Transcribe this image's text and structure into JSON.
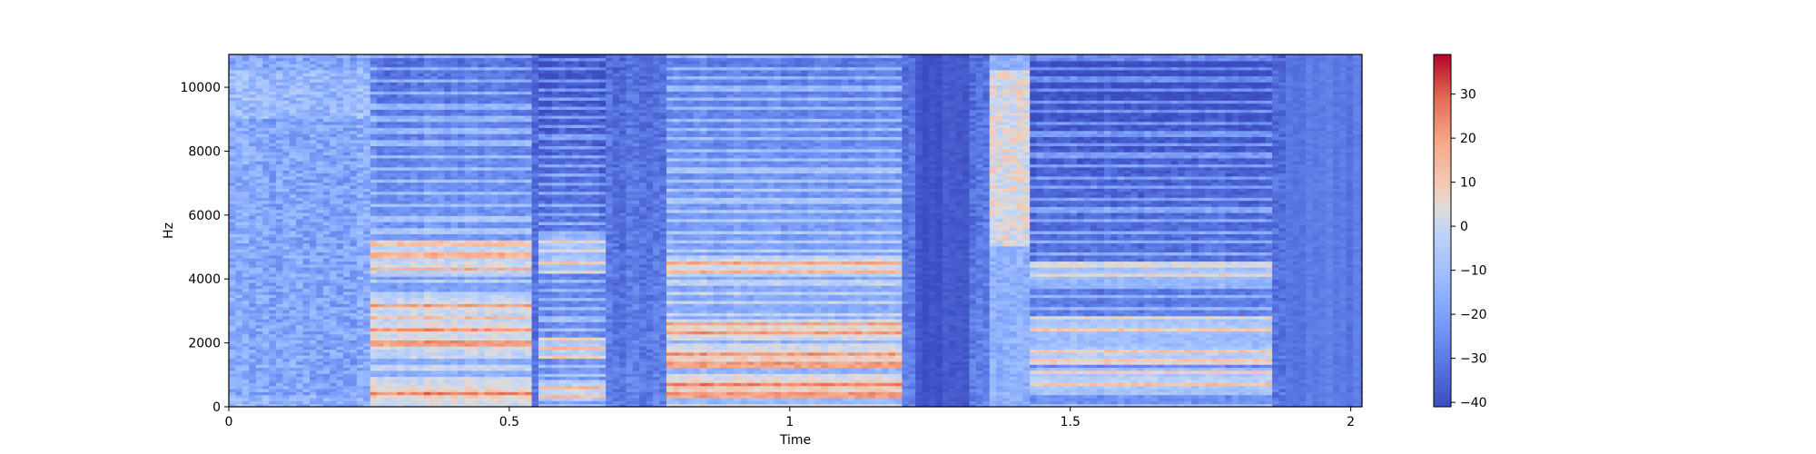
{
  "chart_data": {
    "type": "heatmap",
    "title": "",
    "xlabel": "Time",
    "ylabel": "Hz",
    "xlim": [
      0,
      2.02
    ],
    "ylim": [
      0,
      11025
    ],
    "x_ticks": [
      0,
      0.5,
      1,
      1.5,
      2
    ],
    "x_tick_labels": [
      "0",
      "0.5",
      "1",
      "1.5",
      "2"
    ],
    "y_ticks": [
      0,
      2000,
      4000,
      6000,
      8000,
      10000
    ],
    "y_tick_labels": [
      "0",
      "2000",
      "4000",
      "6000",
      "8000",
      "10000"
    ],
    "colormap": "coolwarm",
    "colorbar": {
      "range": [
        -41,
        39
      ],
      "ticks": [
        -40,
        -30,
        -20,
        -10,
        0,
        10,
        20,
        30
      ],
      "tick_labels": [
        "−40",
        "−30",
        "−20",
        "−10",
        "0",
        "10",
        "20",
        "30"
      ]
    },
    "grid": false,
    "segments": [
      {
        "start": 0.0,
        "end": 0.25,
        "energy_db": -18,
        "kind": "noise"
      },
      {
        "start": 0.25,
        "end": 0.53,
        "energy_db": 18,
        "kind": "voiced",
        "f0": 390,
        "formants": [
          400,
          2000,
          2400,
          3100,
          4400,
          4800
        ]
      },
      {
        "start": 0.55,
        "end": 0.67,
        "energy_db": 10,
        "kind": "voiced",
        "f0": 300,
        "formants": [
          500,
          1800,
          4500,
          5000
        ]
      },
      {
        "start": 0.78,
        "end": 1.2,
        "energy_db": 20,
        "kind": "voiced",
        "f0": 320,
        "formants": [
          600,
          1500,
          2400,
          4400
        ]
      },
      {
        "start": 1.22,
        "end": 1.32,
        "energy_db": -41,
        "kind": "silence"
      },
      {
        "start": 1.35,
        "end": 1.42,
        "energy_db": 5,
        "kind": "fricative",
        "band": [
          5000,
          10500
        ]
      },
      {
        "start": 1.42,
        "end": 1.85,
        "energy_db": 8,
        "kind": "voiced",
        "f0": 340,
        "formants": [
          800,
          1600,
          2500,
          4200
        ]
      },
      {
        "start": 1.88,
        "end": 2.02,
        "energy_db": -32,
        "kind": "silence"
      }
    ]
  }
}
